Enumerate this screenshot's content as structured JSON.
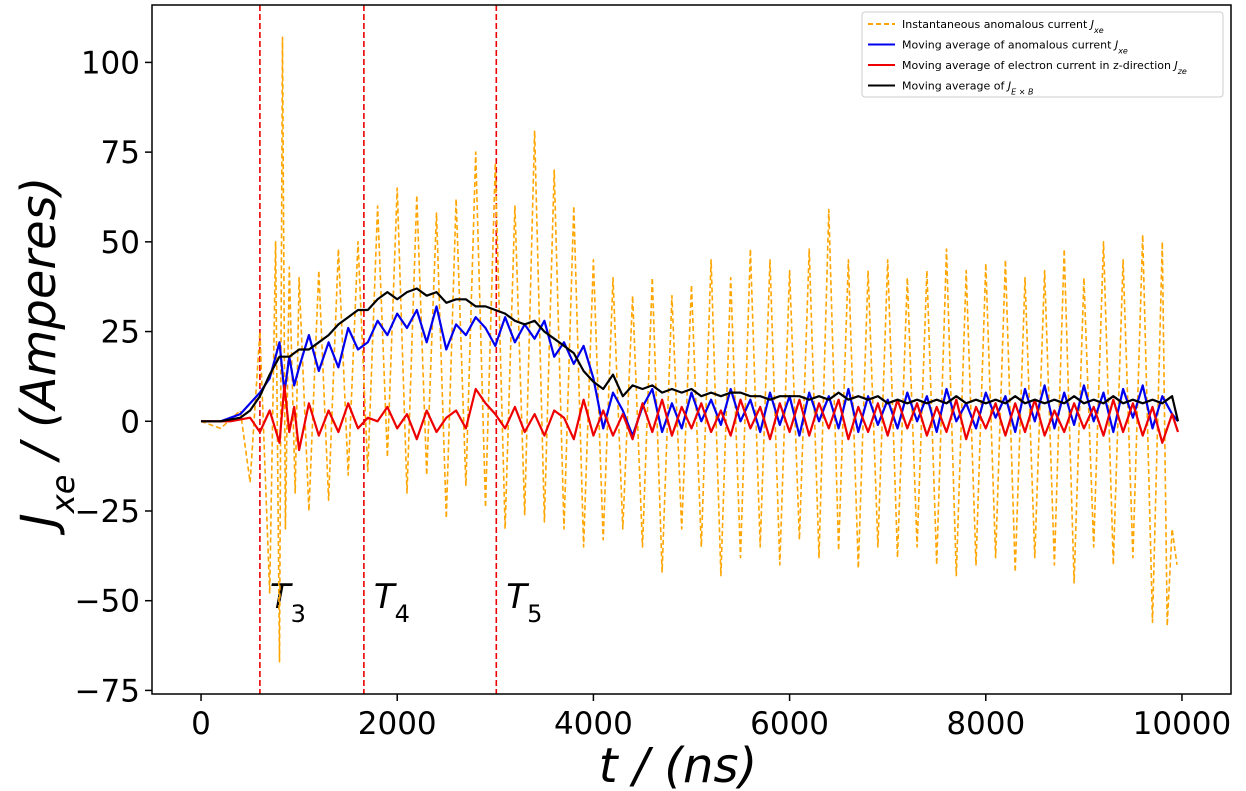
{
  "chart_data": {
    "type": "line",
    "xlabel": "t / (ns)",
    "ylabel": "J_xe / (Amperes)",
    "xlim": [
      -500,
      10500
    ],
    "ylim": [
      -76,
      116
    ],
    "x_ticks": [
      0,
      2000,
      4000,
      6000,
      8000,
      10000
    ],
    "x_tick_labels": [
      "0",
      "2000",
      "4000",
      "6000",
      "8000",
      "10000"
    ],
    "y_ticks": [
      -75,
      -50,
      -25,
      0,
      25,
      50,
      75,
      100
    ],
    "y_tick_labels": [
      "−75",
      "−50",
      "−25",
      "0",
      "25",
      "50",
      "75",
      "100"
    ],
    "legend_position": "top-right",
    "vlines": [
      {
        "x": 600,
        "label": "T",
        "sub": "3",
        "label_y": -47,
        "color": "#ee0000"
      },
      {
        "x": 1660,
        "label": "T",
        "sub": "4",
        "label_y": -47,
        "color": "#ee0000"
      },
      {
        "x": 3010,
        "label": "T",
        "sub": "5",
        "label_y": -47,
        "color": "#ee0000"
      }
    ],
    "series": [
      {
        "name": "Instantaneous anomalous current",
        "legend_math": "J",
        "legend_sub": "xe",
        "color": "#ffa500",
        "style": "dashed",
        "x": [
          0,
          200,
          400,
          500,
          600,
          700,
          760,
          800,
          830,
          860,
          900,
          960,
          1000,
          1100,
          1200,
          1300,
          1400,
          1500,
          1600,
          1700,
          1800,
          1900,
          2000,
          2100,
          2200,
          2300,
          2400,
          2500,
          2600,
          2700,
          2800,
          2900,
          3000,
          3100,
          3200,
          3300,
          3400,
          3500,
          3600,
          3700,
          3800,
          3900,
          4000,
          4100,
          4200,
          4300,
          4400,
          4500,
          4600,
          4700,
          4800,
          4900,
          5000,
          5100,
          5200,
          5300,
          5400,
          5500,
          5600,
          5700,
          5800,
          5900,
          6000,
          6100,
          6200,
          6300,
          6400,
          6500,
          6600,
          6700,
          6800,
          6900,
          7000,
          7100,
          7200,
          7300,
          7400,
          7500,
          7600,
          7700,
          7800,
          7900,
          8000,
          8100,
          8200,
          8300,
          8400,
          8500,
          8600,
          8700,
          8800,
          8900,
          9000,
          9100,
          9200,
          9300,
          9400,
          9500,
          9600,
          9700,
          9800,
          9850,
          9900,
          9950
        ],
        "values": [
          0,
          -2,
          3,
          -17,
          25,
          -48,
          50,
          -67,
          107,
          -30,
          43,
          -20,
          40,
          -25,
          42,
          -22,
          48,
          -15,
          50,
          -14,
          60,
          -10,
          65,
          -20,
          63,
          -15,
          58,
          -27,
          62,
          -18,
          75,
          -24,
          72,
          -30,
          60,
          -26,
          81,
          -28,
          70,
          -30,
          60,
          -35,
          45,
          -33,
          40,
          -30,
          35,
          -35,
          40,
          -42,
          35,
          -30,
          38,
          -35,
          45,
          -43,
          40,
          -38,
          48,
          -35,
          45,
          -40,
          42,
          -33,
          48,
          -38,
          59,
          -36,
          45,
          -41,
          42,
          -35,
          45,
          -38,
          40,
          -35,
          42,
          -40,
          48,
          -43,
          42,
          -40,
          44,
          -38,
          45,
          -42,
          40,
          -38,
          42,
          -40,
          48,
          -45,
          40,
          -35,
          50,
          -40,
          45,
          -38,
          52,
          -56,
          50,
          -57,
          -30,
          -40
        ]
      },
      {
        "name": "Moving average of anomalous current",
        "legend_math": "J",
        "legend_sub": "xe",
        "color": "#0000ee",
        "style": "solid",
        "x": [
          0,
          200,
          400,
          600,
          700,
          800,
          850,
          900,
          950,
          1000,
          1100,
          1200,
          1300,
          1400,
          1500,
          1600,
          1700,
          1800,
          1900,
          2000,
          2100,
          2200,
          2300,
          2400,
          2500,
          2600,
          2700,
          2800,
          2900,
          3000,
          3100,
          3200,
          3300,
          3400,
          3500,
          3600,
          3700,
          3800,
          3900,
          4000,
          4100,
          4200,
          4300,
          4400,
          4500,
          4600,
          4700,
          4800,
          4900,
          5000,
          5100,
          5200,
          5300,
          5400,
          5500,
          5600,
          5700,
          5800,
          5900,
          6000,
          6100,
          6200,
          6300,
          6400,
          6500,
          6600,
          6700,
          6800,
          6900,
          7000,
          7100,
          7200,
          7300,
          7400,
          7500,
          7600,
          7700,
          7800,
          7900,
          8000,
          8100,
          8200,
          8300,
          8400,
          8500,
          8600,
          8700,
          8800,
          8900,
          9000,
          9100,
          9200,
          9300,
          9400,
          9500,
          9600,
          9700,
          9800,
          9900,
          9960
        ],
        "values": [
          0,
          0,
          2,
          8,
          12,
          22,
          8,
          18,
          10,
          15,
          24,
          14,
          22,
          15,
          26,
          20,
          22,
          28,
          24,
          30,
          26,
          31,
          22,
          32,
          20,
          27,
          24,
          29,
          26,
          21,
          29,
          22,
          27,
          23,
          28,
          18,
          22,
          16,
          21,
          12,
          -2,
          8,
          3,
          -4,
          4,
          9,
          -3,
          5,
          -2,
          8,
          0,
          6,
          -1,
          9,
          0,
          6,
          -3,
          8,
          -1,
          7,
          -4,
          8,
          0,
          7,
          -2,
          9,
          -3,
          7,
          -1,
          6,
          -2,
          8,
          0,
          7,
          -3,
          9,
          0,
          5,
          -2,
          8,
          1,
          7,
          -3,
          9,
          0,
          10,
          -2,
          8,
          -1,
          10,
          0,
          8,
          -3,
          9,
          1,
          10,
          -2,
          7,
          2,
          0
        ]
      },
      {
        "name": "Moving average of electron current in z-direction",
        "legend_math": "J",
        "legend_sub": "ze",
        "color": "#ee0000",
        "style": "solid",
        "x": [
          0,
          300,
          500,
          600,
          700,
          800,
          850,
          900,
          950,
          1000,
          1100,
          1200,
          1300,
          1400,
          1500,
          1600,
          1700,
          1800,
          1900,
          2000,
          2100,
          2200,
          2300,
          2400,
          2500,
          2600,
          2700,
          2800,
          2900,
          3000,
          3100,
          3200,
          3300,
          3400,
          3500,
          3600,
          3700,
          3800,
          3900,
          4000,
          4100,
          4200,
          4300,
          4400,
          4500,
          4600,
          4700,
          4800,
          4900,
          5000,
          5100,
          5200,
          5300,
          5400,
          5500,
          5600,
          5700,
          5800,
          5900,
          6000,
          6100,
          6200,
          6300,
          6400,
          6500,
          6600,
          6700,
          6800,
          6900,
          7000,
          7100,
          7200,
          7300,
          7400,
          7500,
          7600,
          7700,
          7800,
          7900,
          8000,
          8100,
          8200,
          8300,
          8400,
          8500,
          8600,
          8700,
          8800,
          8900,
          9000,
          9100,
          9200,
          9300,
          9400,
          9500,
          9600,
          9700,
          9800,
          9900,
          9960
        ],
        "values": [
          0,
          0,
          1,
          -3,
          3,
          -6,
          10,
          -3,
          4,
          -8,
          5,
          -4,
          3,
          -3,
          5,
          -2,
          1,
          0,
          4,
          -2,
          2,
          -5,
          3,
          -3,
          1,
          3,
          -2,
          9,
          5,
          2,
          -2,
          4,
          -3,
          2,
          -4,
          3,
          1,
          -5,
          6,
          -4,
          3,
          -4,
          2,
          -5,
          5,
          -3,
          6,
          -4,
          4,
          -2,
          5,
          -3,
          3,
          -4,
          6,
          -2,
          4,
          -5,
          5,
          -3,
          6,
          -4,
          5,
          -2,
          6,
          -5,
          4,
          -3,
          5,
          -4,
          6,
          -2,
          5,
          -4,
          4,
          -3,
          6,
          -5,
          4,
          -2,
          5,
          -4,
          5,
          -3,
          6,
          -4,
          3,
          -3,
          5,
          -2,
          4,
          -4,
          6,
          -3,
          5,
          -4,
          4,
          -6,
          2,
          -3
        ]
      },
      {
        "name": "Moving average of",
        "legend_math": "J",
        "legend_sub": "E × B",
        "color": "#000000",
        "style": "solid",
        "x": [
          0,
          200,
          400,
          500,
          600,
          700,
          800,
          900,
          1000,
          1100,
          1200,
          1300,
          1400,
          1500,
          1600,
          1700,
          1800,
          1900,
          2000,
          2100,
          2200,
          2300,
          2400,
          2500,
          2600,
          2700,
          2800,
          2900,
          3000,
          3100,
          3200,
          3300,
          3400,
          3500,
          3600,
          3700,
          3800,
          3900,
          4000,
          4100,
          4200,
          4300,
          4400,
          4500,
          4600,
          4700,
          4800,
          4900,
          5000,
          5100,
          5200,
          5300,
          5400,
          5500,
          5600,
          5700,
          5800,
          5900,
          6000,
          6100,
          6200,
          6300,
          6400,
          6500,
          6600,
          6700,
          6800,
          6900,
          7000,
          7100,
          7200,
          7300,
          7400,
          7500,
          7600,
          7700,
          7800,
          7900,
          8000,
          8100,
          8200,
          8300,
          8400,
          8500,
          8600,
          8700,
          8800,
          8900,
          9000,
          9100,
          9200,
          9300,
          9400,
          9500,
          9600,
          9700,
          9800,
          9900,
          9960
        ],
        "values": [
          0,
          0,
          1,
          3,
          7,
          13,
          18,
          18,
          20,
          20,
          22,
          24,
          27,
          29,
          31,
          31,
          34,
          36,
          34,
          36,
          37,
          35,
          36,
          33,
          34,
          34,
          32,
          32,
          31,
          30,
          28,
          27,
          28,
          25,
          23,
          21,
          19,
          14,
          11,
          9,
          13,
          7,
          10,
          9,
          10,
          8,
          9,
          8,
          9,
          7,
          8,
          7,
          8,
          8,
          7,
          7,
          6,
          7,
          7,
          7,
          6,
          7,
          6,
          8,
          6,
          7,
          6,
          7,
          5,
          6,
          5,
          6,
          5,
          6,
          5,
          7,
          5,
          6,
          5,
          6,
          5,
          7,
          5,
          6,
          5,
          6,
          5,
          7,
          5,
          6,
          5,
          7,
          5,
          6,
          5,
          6,
          5,
          7,
          0
        ]
      }
    ]
  }
}
